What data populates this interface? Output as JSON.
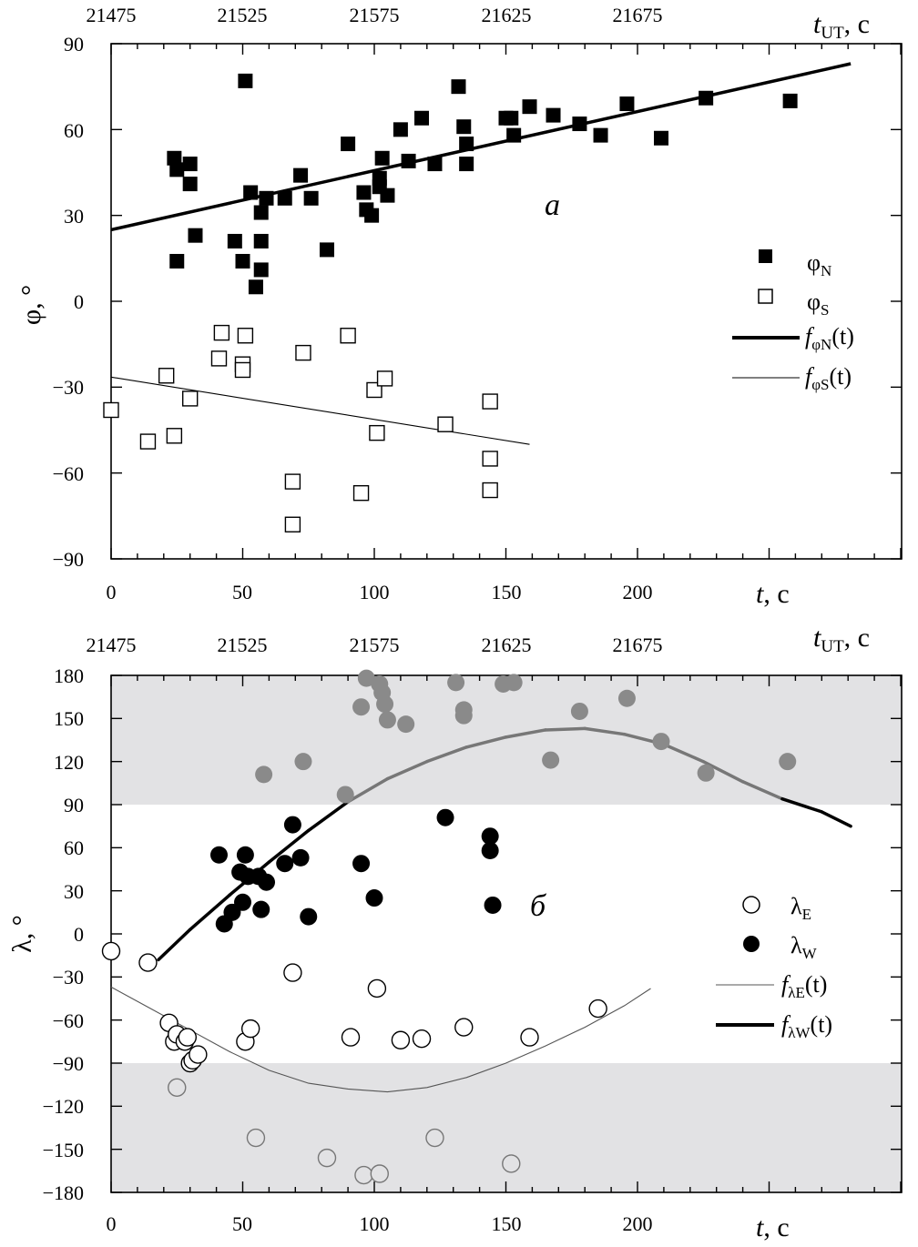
{
  "charts": [
    {
      "panel_letter": "a",
      "type": "scatter",
      "x_axis": {
        "label_t": "t",
        "label_unit": ", с",
        "range": [
          0,
          300
        ],
        "ticks": [
          0,
          50,
          100,
          150,
          200
        ],
        "tick_labels": [
          "0",
          "50",
          "100",
          "150",
          "200"
        ]
      },
      "top_axis": {
        "label_t": "t",
        "label_sub": "UT",
        "label_unit": ", с",
        "tick_labels": [
          "21475",
          "21525",
          "21575",
          "21625",
          "21675"
        ]
      },
      "y_axis": {
        "label": "φ, °",
        "range": [
          -90,
          90
        ],
        "ticks": [
          90,
          60,
          30,
          0,
          -30,
          -60,
          -90
        ],
        "tick_labels": [
          "90",
          "60",
          "30",
          "0",
          "−30",
          "−60",
          "−90"
        ]
      },
      "legend": [
        {
          "symbol": "filled-square",
          "base": "φ",
          "sub": "N"
        },
        {
          "symbol": "open-square",
          "base": "φ",
          "sub": "S"
        },
        {
          "symbol": "thick-line",
          "f": "f",
          "sub": "φN",
          "arg": "(t)"
        },
        {
          "symbol": "thin-line",
          "f": "f",
          "sub": "φS",
          "arg": "(t)"
        }
      ]
    },
    {
      "panel_letter": "б",
      "type": "scatter",
      "x_axis": {
        "label_t": "t",
        "label_unit": ", с",
        "range": [
          0,
          300
        ],
        "ticks": [
          0,
          50,
          100,
          150,
          200
        ],
        "tick_labels": [
          "0",
          "50",
          "100",
          "150",
          "200"
        ]
      },
      "top_axis": {
        "label_t": "t",
        "label_sub": "UT",
        "label_unit": ", с",
        "tick_labels": [
          "21475",
          "21525",
          "21575",
          "21625",
          "21675"
        ]
      },
      "y_axis": {
        "label": "λ, °",
        "range": [
          -180,
          180
        ],
        "ticks": [
          180,
          150,
          120,
          90,
          60,
          30,
          0,
          -30,
          -60,
          -90,
          -120,
          -150,
          -180
        ],
        "tick_labels": [
          "180",
          "150",
          "120",
          "90",
          "60",
          "30",
          "0",
          "−30",
          "−60",
          "−90",
          "−120",
          "−150",
          "−180"
        ]
      },
      "legend": [
        {
          "symbol": "open-circle",
          "base": "λ",
          "sub": "E"
        },
        {
          "symbol": "filled-circle",
          "base": "λ",
          "sub": "W"
        },
        {
          "symbol": "thin-line",
          "f": "f",
          "sub": "λE",
          "arg": "(t)"
        },
        {
          "symbol": "thick-line",
          "f": "f",
          "sub": "λW",
          "arg": "(t)"
        }
      ],
      "shaded_bands": [
        [
          90,
          180
        ],
        [
          -180,
          -90
        ]
      ]
    }
  ],
  "chart_data": [
    {
      "type": "scatter",
      "title": "a",
      "xlabel": "t, с",
      "ylabel": "φ, °",
      "xlim": [
        0,
        300
      ],
      "ylim": [
        -90,
        90
      ],
      "series": [
        {
          "name": "φN",
          "marker": "filled-square",
          "points": [
            [
              24,
              50
            ],
            [
              25,
              46
            ],
            [
              25,
              14
            ],
            [
              30,
              48
            ],
            [
              30,
              41
            ],
            [
              32,
              23
            ],
            [
              47,
              21
            ],
            [
              50,
              14
            ],
            [
              51,
              77
            ],
            [
              53,
              38
            ],
            [
              55,
              5
            ],
            [
              57,
              31
            ],
            [
              57,
              21
            ],
            [
              57,
              11
            ],
            [
              59,
              36
            ],
            [
              66,
              36
            ],
            [
              72,
              44
            ],
            [
              76,
              36
            ],
            [
              82,
              18
            ],
            [
              90,
              55
            ],
            [
              96,
              38
            ],
            [
              97,
              32
            ],
            [
              99,
              30
            ],
            [
              102,
              43
            ],
            [
              102,
              40
            ],
            [
              103,
              50
            ],
            [
              105,
              37
            ],
            [
              110,
              60
            ],
            [
              113,
              49
            ],
            [
              118,
              64
            ],
            [
              123,
              48
            ],
            [
              132,
              75
            ],
            [
              134,
              61
            ],
            [
              135,
              55
            ],
            [
              135,
              48
            ],
            [
              150,
              64
            ],
            [
              152,
              64
            ],
            [
              153,
              58
            ],
            [
              159,
              68
            ],
            [
              168,
              65
            ],
            [
              178,
              62
            ],
            [
              186,
              58
            ],
            [
              196,
              69
            ],
            [
              209,
              57
            ],
            [
              226,
              71
            ],
            [
              258,
              70
            ]
          ]
        },
        {
          "name": "φS",
          "marker": "open-square",
          "points": [
            [
              0,
              -38
            ],
            [
              14,
              -49
            ],
            [
              21,
              -26
            ],
            [
              24,
              -47
            ],
            [
              30,
              -34
            ],
            [
              42,
              -11
            ],
            [
              41,
              -20
            ],
            [
              50,
              -22
            ],
            [
              50,
              -24
            ],
            [
              51,
              -12
            ],
            [
              69,
              -63
            ],
            [
              69,
              -78
            ],
            [
              73,
              -18
            ],
            [
              90,
              -12
            ],
            [
              95,
              -67
            ],
            [
              100,
              -31
            ],
            [
              101,
              -46
            ],
            [
              104,
              -27
            ],
            [
              127,
              -43
            ],
            [
              144,
              -35
            ],
            [
              144,
              -55
            ],
            [
              144,
              -66
            ]
          ]
        },
        {
          "name": "fφN(t)",
          "line": "thick",
          "points": [
            [
              0,
              25
            ],
            [
              281,
              83
            ]
          ]
        },
        {
          "name": "fφS(t)",
          "line": "thin",
          "points": [
            [
              0,
              -26.5
            ],
            [
              159,
              -50
            ]
          ]
        }
      ]
    },
    {
      "type": "scatter",
      "title": "б",
      "xlabel": "t, с",
      "ylabel": "λ, °",
      "xlim": [
        0,
        300
      ],
      "ylim": [
        -180,
        180
      ],
      "series": [
        {
          "name": "λE",
          "marker": "open-circle",
          "points": [
            [
              0,
              -12
            ],
            [
              14,
              -20
            ],
            [
              22,
              -62
            ],
            [
              24,
              -75
            ],
            [
              25,
              -70
            ],
            [
              25,
              -107
            ],
            [
              28,
              -75
            ],
            [
              29,
              -72
            ],
            [
              30,
              -90
            ],
            [
              31,
              -88
            ],
            [
              33,
              -84
            ],
            [
              51,
              -75
            ],
            [
              53,
              -66
            ],
            [
              55,
              -142
            ],
            [
              69,
              -27
            ],
            [
              82,
              -156
            ],
            [
              91,
              -72
            ],
            [
              96,
              -168
            ],
            [
              101,
              -38
            ],
            [
              102,
              -167
            ],
            [
              110,
              -74
            ],
            [
              118,
              -73
            ],
            [
              123,
              -142
            ],
            [
              134,
              -65
            ],
            [
              152,
              -160
            ],
            [
              159,
              -72
            ],
            [
              185,
              -52
            ]
          ]
        },
        {
          "name": "λW",
          "marker": "filled-circle",
          "points": [
            [
              41,
              55
            ],
            [
              43,
              7
            ],
            [
              46,
              15
            ],
            [
              49,
              43
            ],
            [
              50,
              22
            ],
            [
              51,
              55
            ],
            [
              52,
              40
            ],
            [
              56,
              40
            ],
            [
              57,
              17
            ],
            [
              59,
              36
            ],
            [
              66,
              49
            ],
            [
              69,
              76
            ],
            [
              72,
              53
            ],
            [
              75,
              12
            ],
            [
              95,
              49
            ],
            [
              100,
              25
            ],
            [
              127,
              81
            ],
            [
              144,
              58
            ],
            [
              144,
              68
            ],
            [
              145,
              20
            ],
            [
              58,
              111
            ],
            [
              73,
              120
            ],
            [
              89,
              97
            ],
            [
              95,
              158
            ],
            [
              97,
              178
            ],
            [
              102,
              174
            ],
            [
              103,
              168
            ],
            [
              104,
              160
            ],
            [
              105,
              149
            ],
            [
              112,
              146
            ],
            [
              131,
              175
            ],
            [
              134,
              156
            ],
            [
              134,
              152
            ],
            [
              149,
              174
            ],
            [
              153,
              175
            ],
            [
              167,
              121
            ],
            [
              178,
              155
            ],
            [
              196,
              164
            ],
            [
              209,
              134
            ],
            [
              226,
              112
            ],
            [
              257,
              120
            ]
          ]
        },
        {
          "name": "fλE(t)",
          "line": "thin",
          "points": [
            [
              0,
              -37
            ],
            [
              15,
              -52
            ],
            [
              30,
              -67
            ],
            [
              45,
              -82
            ],
            [
              60,
              -95
            ],
            [
              75,
              -104
            ],
            [
              90,
              -108
            ],
            [
              105,
              -110
            ],
            [
              120,
              -107
            ],
            [
              135,
              -100
            ],
            [
              150,
              -90
            ],
            [
              165,
              -78
            ],
            [
              180,
              -65
            ],
            [
              195,
              -50
            ],
            [
              205,
              -38
            ]
          ]
        },
        {
          "name": "fλW(t)",
          "line": "thick",
          "points": [
            [
              18,
              -18
            ],
            [
              30,
              3
            ],
            [
              45,
              27
            ],
            [
              60,
              50
            ],
            [
              75,
              72
            ],
            [
              90,
              92
            ],
            [
              105,
              108
            ],
            [
              120,
              120
            ],
            [
              135,
              130
            ],
            [
              150,
              137
            ],
            [
              165,
              142
            ],
            [
              180,
              143
            ],
            [
              195,
              139
            ],
            [
              210,
              132
            ],
            [
              225,
              120
            ],
            [
              240,
              106
            ],
            [
              255,
              94
            ],
            [
              270,
              85
            ],
            [
              281,
              75
            ]
          ]
        }
      ]
    }
  ]
}
